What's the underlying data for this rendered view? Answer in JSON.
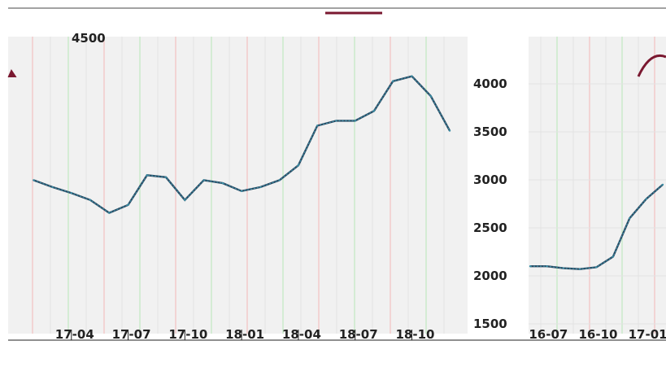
{
  "colors": {
    "background": "#ffffff",
    "panel": "#f1f1f1",
    "grid_light": "#e2e2e2",
    "grid_red": "#f2b8b8",
    "grid_green": "#b8e8b8",
    "series_line": "#3c8fa6",
    "series_dark": "#2b4b63",
    "legend_line": "#7a1830"
  },
  "chart_data": [
    {
      "type": "line",
      "title": "",
      "legend_text": "",
      "legend_position": "top-center",
      "grid": true,
      "ylim": [
        1500,
        4500
      ],
      "ytick_top_label": "4500",
      "x_tick_labels": [
        "17-04",
        "17-07",
        "17-10",
        "18-01",
        "18-04",
        "18-07",
        "18-10"
      ],
      "series": [
        {
          "values": [
            [
              "2017-02",
              3050
            ],
            [
              "2017-03",
              2980
            ],
            [
              "2017-04",
              2920
            ],
            [
              "2017-05",
              2850
            ],
            [
              "2017-06",
              2720
            ],
            [
              "2017-07",
              2800
            ],
            [
              "2017-08",
              3100
            ],
            [
              "2017-09",
              3080
            ],
            [
              "2017-10",
              2850
            ],
            [
              "2017-11",
              3050
            ],
            [
              "2017-12",
              3020
            ],
            [
              "2018-01",
              2940
            ],
            [
              "2018-02",
              2980
            ],
            [
              "2018-03",
              3050
            ],
            [
              "2018-04",
              3200
            ],
            [
              "2018-05",
              3600
            ],
            [
              "2018-06",
              3650
            ],
            [
              "2018-07",
              3650
            ],
            [
              "2018-08",
              3750
            ],
            [
              "2018-09",
              4050
            ],
            [
              "2018-10",
              4100
            ],
            [
              "2018-11",
              3900
            ],
            [
              "2018-12",
              3550
            ]
          ]
        }
      ]
    },
    {
      "type": "line",
      "title": "",
      "grid": true,
      "ylim": [
        1500,
        4250
      ],
      "y_tick_labels": [
        "4000",
        "3500",
        "3000",
        "2500",
        "2000",
        "1500"
      ],
      "x_tick_labels": [
        "16-07",
        "16-10",
        "17-01"
      ],
      "series": [
        {
          "values": [
            [
              "2016-06",
              2100
            ],
            [
              "2016-07",
              2100
            ],
            [
              "2016-08",
              2080
            ],
            [
              "2016-09",
              2070
            ],
            [
              "2016-10",
              2090
            ],
            [
              "2016-11",
              2200
            ],
            [
              "2016-12",
              2600
            ],
            [
              "2017-01",
              2800
            ],
            [
              "2017-02",
              2950
            ]
          ]
        }
      ]
    }
  ]
}
